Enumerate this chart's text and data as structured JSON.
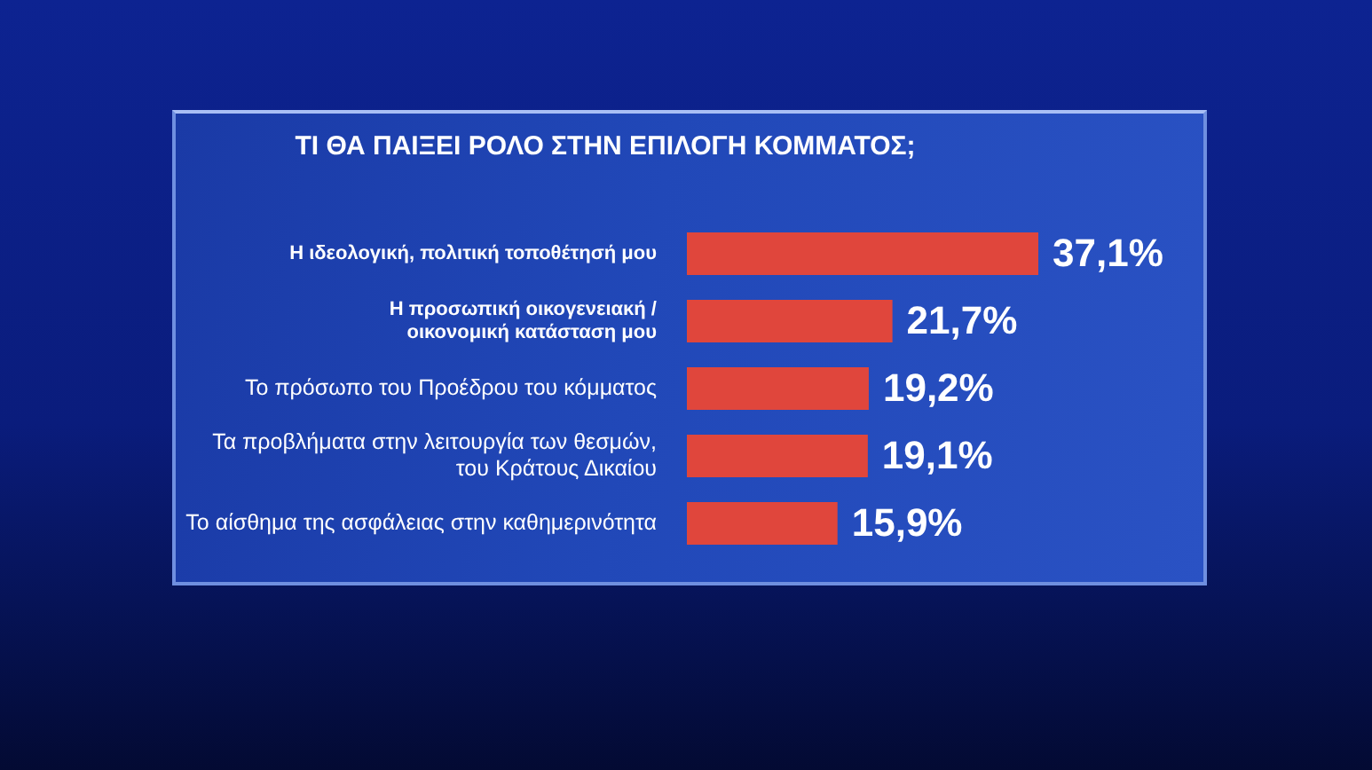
{
  "chart_data": {
    "type": "bar",
    "orientation": "horizontal",
    "title": "ΤΙ ΘΑ ΠΑΙΞΕΙ ΡΟΛΟ ΣΤΗΝ ΕΠΙΛΟΓΗ ΚΟΜΜΑΤΟΣ;",
    "categories": [
      "Η ιδεολογική, πολιτική τοποθέτησή μου",
      "Η προσωπική οικογενειακή /\nοικονομική κατάσταση μου",
      "Το πρόσωπο του Προέδρου του κόμματος",
      "Τα προβλήματα στην λειτουργία των θεσμών,\nτου Κράτους Δικαίου",
      "Το αίσθημα της ασφάλειας στην καθημερινότητα"
    ],
    "values": [
      37.1,
      21.7,
      19.2,
      19.1,
      15.9
    ],
    "color": "#e0463c",
    "value_labels": [
      "37,1%",
      "21,7%",
      "19,2%",
      "19,1%",
      "15,9%"
    ],
    "tick_labels": "y",
    "grid": false
  }
}
